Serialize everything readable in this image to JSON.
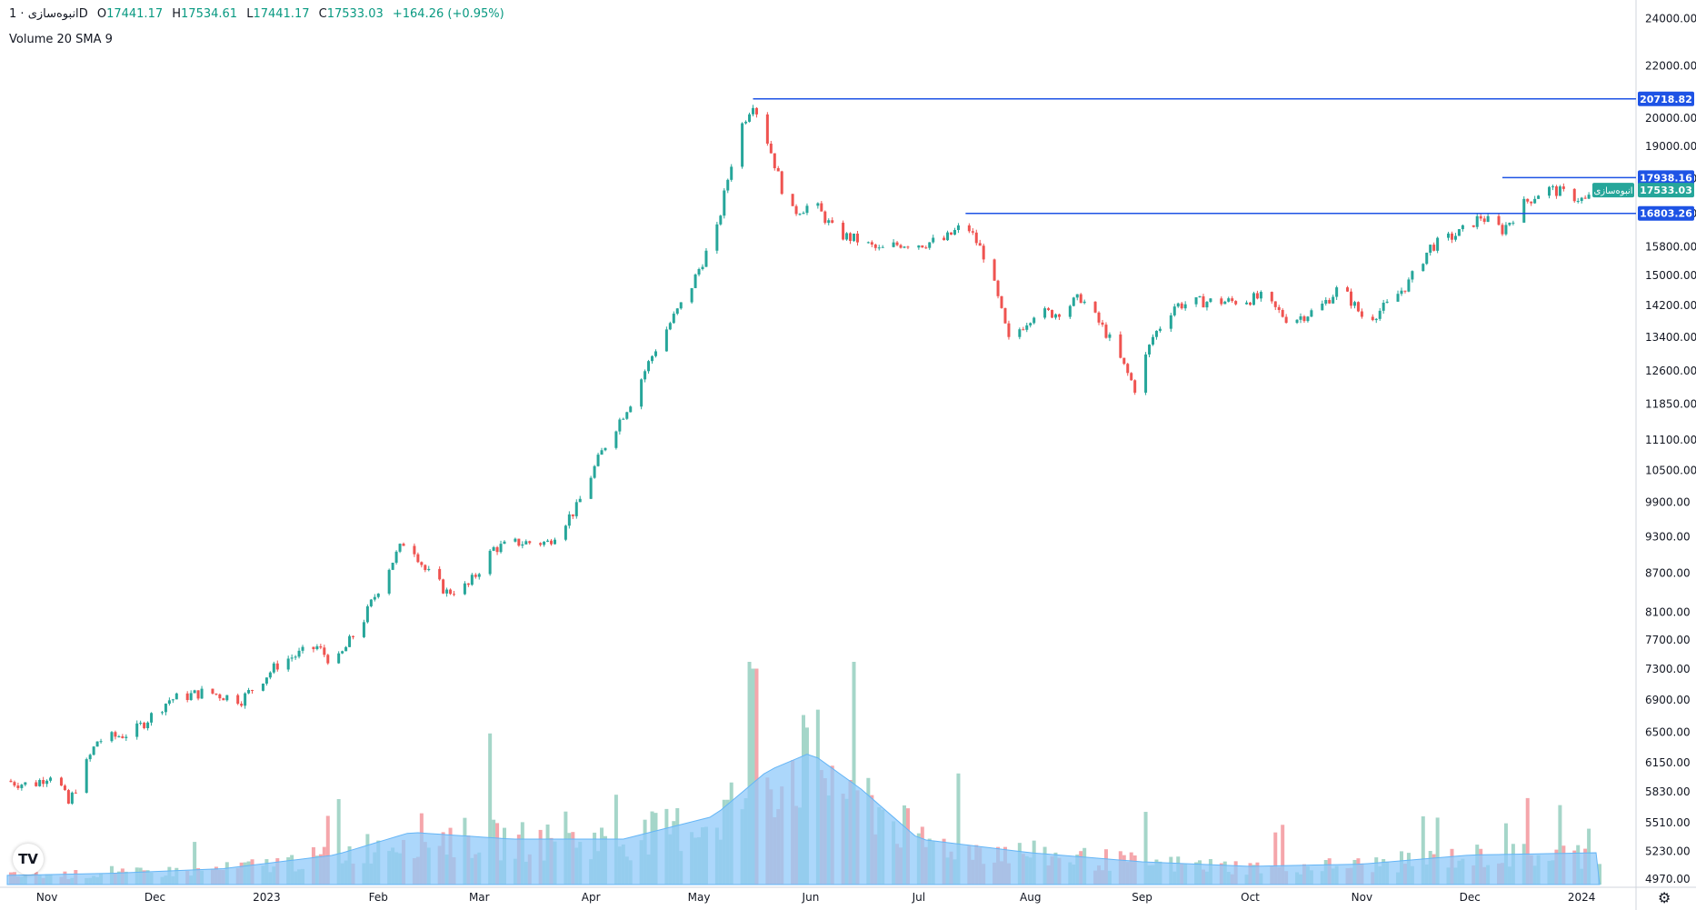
{
  "header": {
    "symbol": "انبوه‌سازی",
    "interval": "1D",
    "open_label": "O",
    "open": "17441.17",
    "high_label": "H",
    "high": "17534.61",
    "low_label": "L",
    "low": "17441.17",
    "close_label": "C",
    "close": "17533.03",
    "change": "+164.26 (+0.95%)"
  },
  "volume_legend": "Volume 20 SMA 9",
  "logo_text": "TV",
  "settings_icon": "gear-icon",
  "colors": {
    "up": "#26a69a",
    "down": "#ef5350",
    "vol_up": "#a5d6c9",
    "vol_down": "#f5a6ab",
    "vol_sma_fill": "#90caf9",
    "hline": "#1e53e5",
    "price_tag": "#26a69a"
  },
  "chart_data": {
    "type": "candlestick",
    "y_axis": {
      "scale": "log",
      "ticks": [
        "24000.00",
        "22000.00",
        "20000.00",
        "19000.00",
        "17900.00",
        "16800.00",
        "15800.00",
        "15000.00",
        "14200.00",
        "13400.00",
        "12600.00",
        "11850.00",
        "11100.00",
        "10500.00",
        "9900.00",
        "9300.00",
        "8700.00",
        "8100.00",
        "7700.00",
        "7300.00",
        "6900.00",
        "6500.00",
        "6150.00",
        "5830.00",
        "5510.00",
        "5230.00",
        "4970.00"
      ]
    },
    "x_axis": {
      "labels": [
        "Nov",
        "Dec",
        "2023",
        "Feb",
        "Mar",
        "Apr",
        "May",
        "Jun",
        "Jul",
        "Aug",
        "Sep",
        "Oct",
        "Nov",
        "Dec",
        "2024"
      ]
    },
    "horizontal_levels": [
      {
        "value": 20718.82,
        "label": "20718.82"
      },
      {
        "value": 17938.16,
        "label": "17938.16"
      },
      {
        "value": 16803.26,
        "label": "16803.26"
      }
    ],
    "last_price": {
      "value": 17533.03,
      "label": "17533.03",
      "symbol_tag": "انبوه‌سازی"
    },
    "price_path": [
      [
        "2022-10-20",
        5950
      ],
      [
        "2022-10-28",
        5900
      ],
      [
        "2022-11-03",
        6050
      ],
      [
        "2022-11-07",
        5700
      ],
      [
        "2022-11-15",
        6400
      ],
      [
        "2022-11-25",
        6500
      ],
      [
        "2022-12-05",
        6900
      ],
      [
        "2022-12-15",
        7000
      ],
      [
        "2022-12-25",
        6900
      ],
      [
        "2023-01-05",
        7400
      ],
      [
        "2023-01-15",
        7600
      ],
      [
        "2023-01-20",
        7350
      ],
      [
        "2023-01-28",
        8000
      ],
      [
        "2023-02-04",
        8800
      ],
      [
        "2023-02-09",
        9300
      ],
      [
        "2023-02-14",
        8750
      ],
      [
        "2023-02-20",
        8400
      ],
      [
        "2023-02-26",
        8500
      ],
      [
        "2023-03-05",
        9100
      ],
      [
        "2023-03-12",
        9200
      ],
      [
        "2023-03-20",
        9200
      ],
      [
        "2023-03-28",
        9800
      ],
      [
        "2023-04-05",
        11000
      ],
      [
        "2023-04-12",
        11900
      ],
      [
        "2023-04-20",
        13300
      ],
      [
        "2023-04-28",
        14500
      ],
      [
        "2023-05-06",
        16300
      ],
      [
        "2023-05-12",
        19500
      ],
      [
        "2023-05-16",
        20600
      ],
      [
        "2023-05-20",
        19200
      ],
      [
        "2023-05-26",
        16800
      ],
      [
        "2023-06-02",
        17100
      ],
      [
        "2023-06-08",
        16200
      ],
      [
        "2023-06-14",
        16000
      ],
      [
        "2023-06-20",
        15700
      ],
      [
        "2023-06-26",
        15900
      ],
      [
        "2023-07-02",
        15900
      ],
      [
        "2023-07-08",
        16000
      ],
      [
        "2023-07-14",
        16500
      ],
      [
        "2023-07-20",
        15400
      ],
      [
        "2023-07-26",
        13300
      ],
      [
        "2023-08-02",
        14000
      ],
      [
        "2023-08-08",
        14000
      ],
      [
        "2023-08-15",
        14400
      ],
      [
        "2023-08-22",
        13500
      ],
      [
        "2023-08-30",
        12200
      ],
      [
        "2023-09-04",
        13400
      ],
      [
        "2023-09-10",
        14200
      ],
      [
        "2023-09-18",
        14300
      ],
      [
        "2023-09-26",
        14300
      ],
      [
        "2023-10-04",
        14400
      ],
      [
        "2023-10-12",
        13800
      ],
      [
        "2023-10-20",
        14100
      ],
      [
        "2023-10-26",
        14700
      ],
      [
        "2023-11-02",
        13800
      ],
      [
        "2023-11-08",
        14200
      ],
      [
        "2023-11-14",
        14800
      ],
      [
        "2023-11-20",
        15800
      ],
      [
        "2023-11-28",
        16200
      ],
      [
        "2023-12-04",
        16700
      ],
      [
        "2023-12-10",
        16300
      ],
      [
        "2023-12-16",
        17100
      ],
      [
        "2023-12-22",
        17600
      ],
      [
        "2023-12-28",
        17400
      ],
      [
        "2024-01-02",
        17200
      ],
      [
        "2024-01-06",
        17533
      ]
    ],
    "volume_sma_path": [
      [
        "2022-10-20",
        0.04
      ],
      [
        "2022-11-20",
        0.05
      ],
      [
        "2022-12-20",
        0.07
      ],
      [
        "2023-01-20",
        0.13
      ],
      [
        "2023-02-10",
        0.23
      ],
      [
        "2023-03-10",
        0.2
      ],
      [
        "2023-04-10",
        0.2
      ],
      [
        "2023-05-05",
        0.3
      ],
      [
        "2023-05-20",
        0.5
      ],
      [
        "2023-06-01",
        0.58
      ],
      [
        "2023-06-15",
        0.42
      ],
      [
        "2023-07-01",
        0.2
      ],
      [
        "2023-08-01",
        0.14
      ],
      [
        "2023-09-01",
        0.1
      ],
      [
        "2023-10-01",
        0.08
      ],
      [
        "2023-11-01",
        0.09
      ],
      [
        "2023-12-01",
        0.13
      ],
      [
        "2024-01-06",
        0.14
      ]
    ]
  }
}
